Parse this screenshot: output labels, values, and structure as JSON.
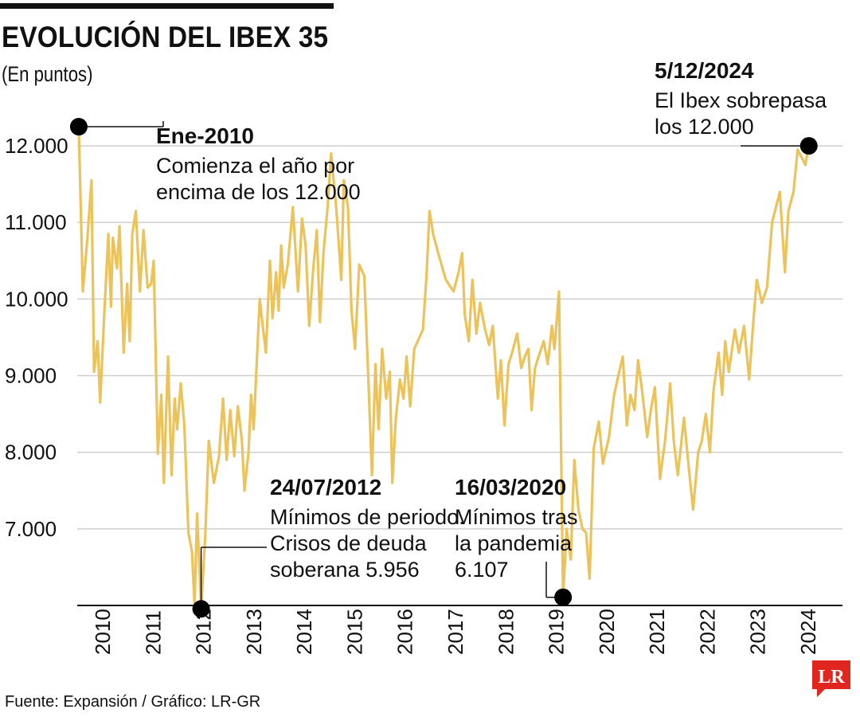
{
  "header": {
    "title": "EVOLUCIÓN DEL IBEX 35",
    "subtitle": "(En puntos)"
  },
  "footer": {
    "source": "Fuente: Expansión / Gráfico: LR-GR",
    "logo": "LR"
  },
  "colors": {
    "line": "#ecc35a",
    "grid": "#cfcfcf",
    "marker": "#000000",
    "logo_red": "#e0261e"
  },
  "chart_data": {
    "type": "line",
    "title": "EVOLUCIÓN DEL IBEX 35",
    "ylabel": "(En puntos)",
    "ylim": [
      6000,
      12500
    ],
    "yticks": [
      7000,
      8000,
      9000,
      10000,
      11000,
      12000
    ],
    "ytick_labels": [
      "7.000",
      "8.000",
      "9.000",
      "10.000",
      "11.000",
      "12.000"
    ],
    "xlim": [
      2009.97,
      2024.98
    ],
    "xtick_labels": [
      "2010",
      "2011",
      "2012",
      "2013",
      "2014",
      "2015",
      "2016",
      "2017",
      "2018",
      "2019",
      "2020",
      "2021",
      "2022",
      "2023",
      "2024"
    ],
    "grid": true,
    "series": [
      {
        "values": [
          [
            2010.0,
            12250
          ],
          [
            2010.08,
            10100
          ],
          [
            2010.17,
            10800
          ],
          [
            2010.25,
            11550
          ],
          [
            2010.3,
            9050
          ],
          [
            2010.37,
            9450
          ],
          [
            2010.42,
            8650
          ],
          [
            2010.5,
            9800
          ],
          [
            2010.58,
            10850
          ],
          [
            2010.63,
            9900
          ],
          [
            2010.67,
            10800
          ],
          [
            2010.75,
            10400
          ],
          [
            2010.8,
            10950
          ],
          [
            2010.88,
            9300
          ],
          [
            2010.95,
            10200
          ],
          [
            2011.0,
            9450
          ],
          [
            2011.05,
            10850
          ],
          [
            2011.12,
            11150
          ],
          [
            2011.2,
            10100
          ],
          [
            2011.27,
            10900
          ],
          [
            2011.35,
            10150
          ],
          [
            2011.42,
            10200
          ],
          [
            2011.47,
            10500
          ],
          [
            2011.55,
            7980
          ],
          [
            2011.62,
            8750
          ],
          [
            2011.67,
            7600
          ],
          [
            2011.75,
            9250
          ],
          [
            2011.82,
            7700
          ],
          [
            2011.88,
            8700
          ],
          [
            2011.93,
            8300
          ],
          [
            2012.0,
            8900
          ],
          [
            2012.07,
            8350
          ],
          [
            2012.15,
            6950
          ],
          [
            2012.22,
            6700
          ],
          [
            2012.27,
            6000
          ],
          [
            2012.32,
            7200
          ],
          [
            2012.4,
            5956
          ],
          [
            2012.48,
            6900
          ],
          [
            2012.55,
            8150
          ],
          [
            2012.65,
            7600
          ],
          [
            2012.75,
            7950
          ],
          [
            2012.83,
            8700
          ],
          [
            2012.9,
            7900
          ],
          [
            2012.97,
            8550
          ],
          [
            2013.05,
            7950
          ],
          [
            2013.12,
            8600
          ],
          [
            2013.2,
            8150
          ],
          [
            2013.25,
            7500
          ],
          [
            2013.33,
            8000
          ],
          [
            2013.38,
            8750
          ],
          [
            2013.43,
            8300
          ],
          [
            2013.5,
            9300
          ],
          [
            2013.55,
            10000
          ],
          [
            2013.6,
            9700
          ],
          [
            2013.67,
            9300
          ],
          [
            2013.75,
            10500
          ],
          [
            2013.8,
            9750
          ],
          [
            2013.87,
            10350
          ],
          [
            2013.92,
            9850
          ],
          [
            2013.97,
            10700
          ],
          [
            2014.02,
            10150
          ],
          [
            2014.1,
            10450
          ],
          [
            2014.2,
            11200
          ],
          [
            2014.3,
            10100
          ],
          [
            2014.38,
            11050
          ],
          [
            2014.45,
            10700
          ],
          [
            2014.52,
            9650
          ],
          [
            2014.6,
            10400
          ],
          [
            2014.67,
            10900
          ],
          [
            2014.73,
            9700
          ],
          [
            2014.8,
            10600
          ],
          [
            2014.88,
            11200
          ],
          [
            2014.95,
            11900
          ],
          [
            2015.05,
            11200
          ],
          [
            2015.15,
            10250
          ],
          [
            2015.2,
            11550
          ],
          [
            2015.28,
            11200
          ],
          [
            2015.35,
            9850
          ],
          [
            2015.42,
            9350
          ],
          [
            2015.5,
            10450
          ],
          [
            2015.6,
            10300
          ],
          [
            2015.68,
            8950
          ],
          [
            2015.75,
            7700
          ],
          [
            2015.82,
            9150
          ],
          [
            2015.88,
            8300
          ],
          [
            2015.95,
            9350
          ],
          [
            2016.03,
            8700
          ],
          [
            2016.1,
            9050
          ],
          [
            2016.15,
            7600
          ],
          [
            2016.22,
            8450
          ],
          [
            2016.3,
            8950
          ],
          [
            2016.37,
            8700
          ],
          [
            2016.43,
            9250
          ],
          [
            2016.5,
            8600
          ],
          [
            2016.58,
            9350
          ],
          [
            2016.75,
            9600
          ],
          [
            2016.82,
            10300
          ],
          [
            2016.88,
            11150
          ],
          [
            2016.95,
            10850
          ],
          [
            2017.05,
            10600
          ],
          [
            2017.2,
            10250
          ],
          [
            2017.35,
            10100
          ],
          [
            2017.45,
            10350
          ],
          [
            2017.52,
            10600
          ],
          [
            2017.57,
            9800
          ],
          [
            2017.65,
            9450
          ],
          [
            2017.72,
            10250
          ],
          [
            2017.8,
            9550
          ],
          [
            2017.87,
            9950
          ],
          [
            2017.97,
            9600
          ],
          [
            2018.05,
            9400
          ],
          [
            2018.12,
            9650
          ],
          [
            2018.22,
            8700
          ],
          [
            2018.28,
            9200
          ],
          [
            2018.35,
            8350
          ],
          [
            2018.43,
            9150
          ],
          [
            2018.5,
            9300
          ],
          [
            2018.6,
            9550
          ],
          [
            2018.68,
            9100
          ],
          [
            2018.75,
            9250
          ],
          [
            2018.82,
            9350
          ],
          [
            2018.88,
            8550
          ],
          [
            2018.95,
            9100
          ],
          [
            2019.02,
            9250
          ],
          [
            2019.12,
            9450
          ],
          [
            2019.2,
            9150
          ],
          [
            2019.28,
            9650
          ],
          [
            2019.33,
            9350
          ],
          [
            2019.42,
            10100
          ],
          [
            2019.5,
            6107
          ],
          [
            2019.57,
            7000
          ],
          [
            2019.65,
            6600
          ],
          [
            2019.72,
            7900
          ],
          [
            2019.8,
            7250
          ],
          [
            2019.88,
            7000
          ],
          [
            2019.95,
            6950
          ],
          [
            2020.02,
            6350
          ],
          [
            2020.1,
            8050
          ],
          [
            2020.2,
            8400
          ],
          [
            2020.28,
            7850
          ],
          [
            2020.4,
            8200
          ],
          [
            2020.5,
            8750
          ],
          [
            2020.6,
            9050
          ],
          [
            2020.67,
            9250
          ],
          [
            2020.75,
            8350
          ],
          [
            2020.82,
            8750
          ],
          [
            2020.9,
            8550
          ],
          [
            2020.97,
            9200
          ],
          [
            2021.05,
            8800
          ],
          [
            2021.15,
            8200
          ],
          [
            2021.22,
            8550
          ],
          [
            2021.3,
            8850
          ],
          [
            2021.4,
            7650
          ],
          [
            2021.5,
            8150
          ],
          [
            2021.6,
            8900
          ],
          [
            2021.67,
            8150
          ],
          [
            2021.75,
            7700
          ],
          [
            2021.87,
            8450
          ],
          [
            2021.95,
            7900
          ],
          [
            2022.05,
            7250
          ],
          [
            2022.15,
            8000
          ],
          [
            2022.22,
            8150
          ],
          [
            2022.3,
            8500
          ],
          [
            2022.38,
            8000
          ],
          [
            2022.45,
            8800
          ],
          [
            2022.55,
            9300
          ],
          [
            2022.62,
            8750
          ],
          [
            2022.68,
            9450
          ],
          [
            2022.75,
            9050
          ],
          [
            2022.87,
            9600
          ],
          [
            2022.95,
            9300
          ],
          [
            2023.05,
            9650
          ],
          [
            2023.15,
            8950
          ],
          [
            2023.23,
            9700
          ],
          [
            2023.3,
            10250
          ],
          [
            2023.4,
            9950
          ],
          [
            2023.5,
            10150
          ],
          [
            2023.6,
            11000
          ],
          [
            2023.75,
            11400
          ],
          [
            2023.85,
            10350
          ],
          [
            2023.92,
            11150
          ],
          [
            2024.02,
            11400
          ],
          [
            2024.1,
            11950
          ],
          [
            2024.18,
            11850
          ],
          [
            2024.25,
            11750
          ],
          [
            2024.32,
            12000
          ]
        ]
      }
    ],
    "annotations": [
      {
        "date": "Ene-2010",
        "lines": [
          "Comienza el año por",
          "encima de los 12.000"
        ],
        "x": 2010.0,
        "y": 12250
      },
      {
        "date": "24/07/2012",
        "lines": [
          "Mínimos de periodo.",
          "Crisos de deuda",
          "soberana 5.956"
        ],
        "x": 2012.4,
        "y": 5956
      },
      {
        "date": "16/03/2020",
        "lines": [
          "Mínimos tras",
          "la pandemia",
          "6.107"
        ],
        "x": 2019.5,
        "y": 6107
      },
      {
        "date": "5/12/2024",
        "lines": [
          "El Ibex sobrepasa",
          "los 12.000"
        ],
        "x": 2024.32,
        "y": 12000
      }
    ]
  }
}
